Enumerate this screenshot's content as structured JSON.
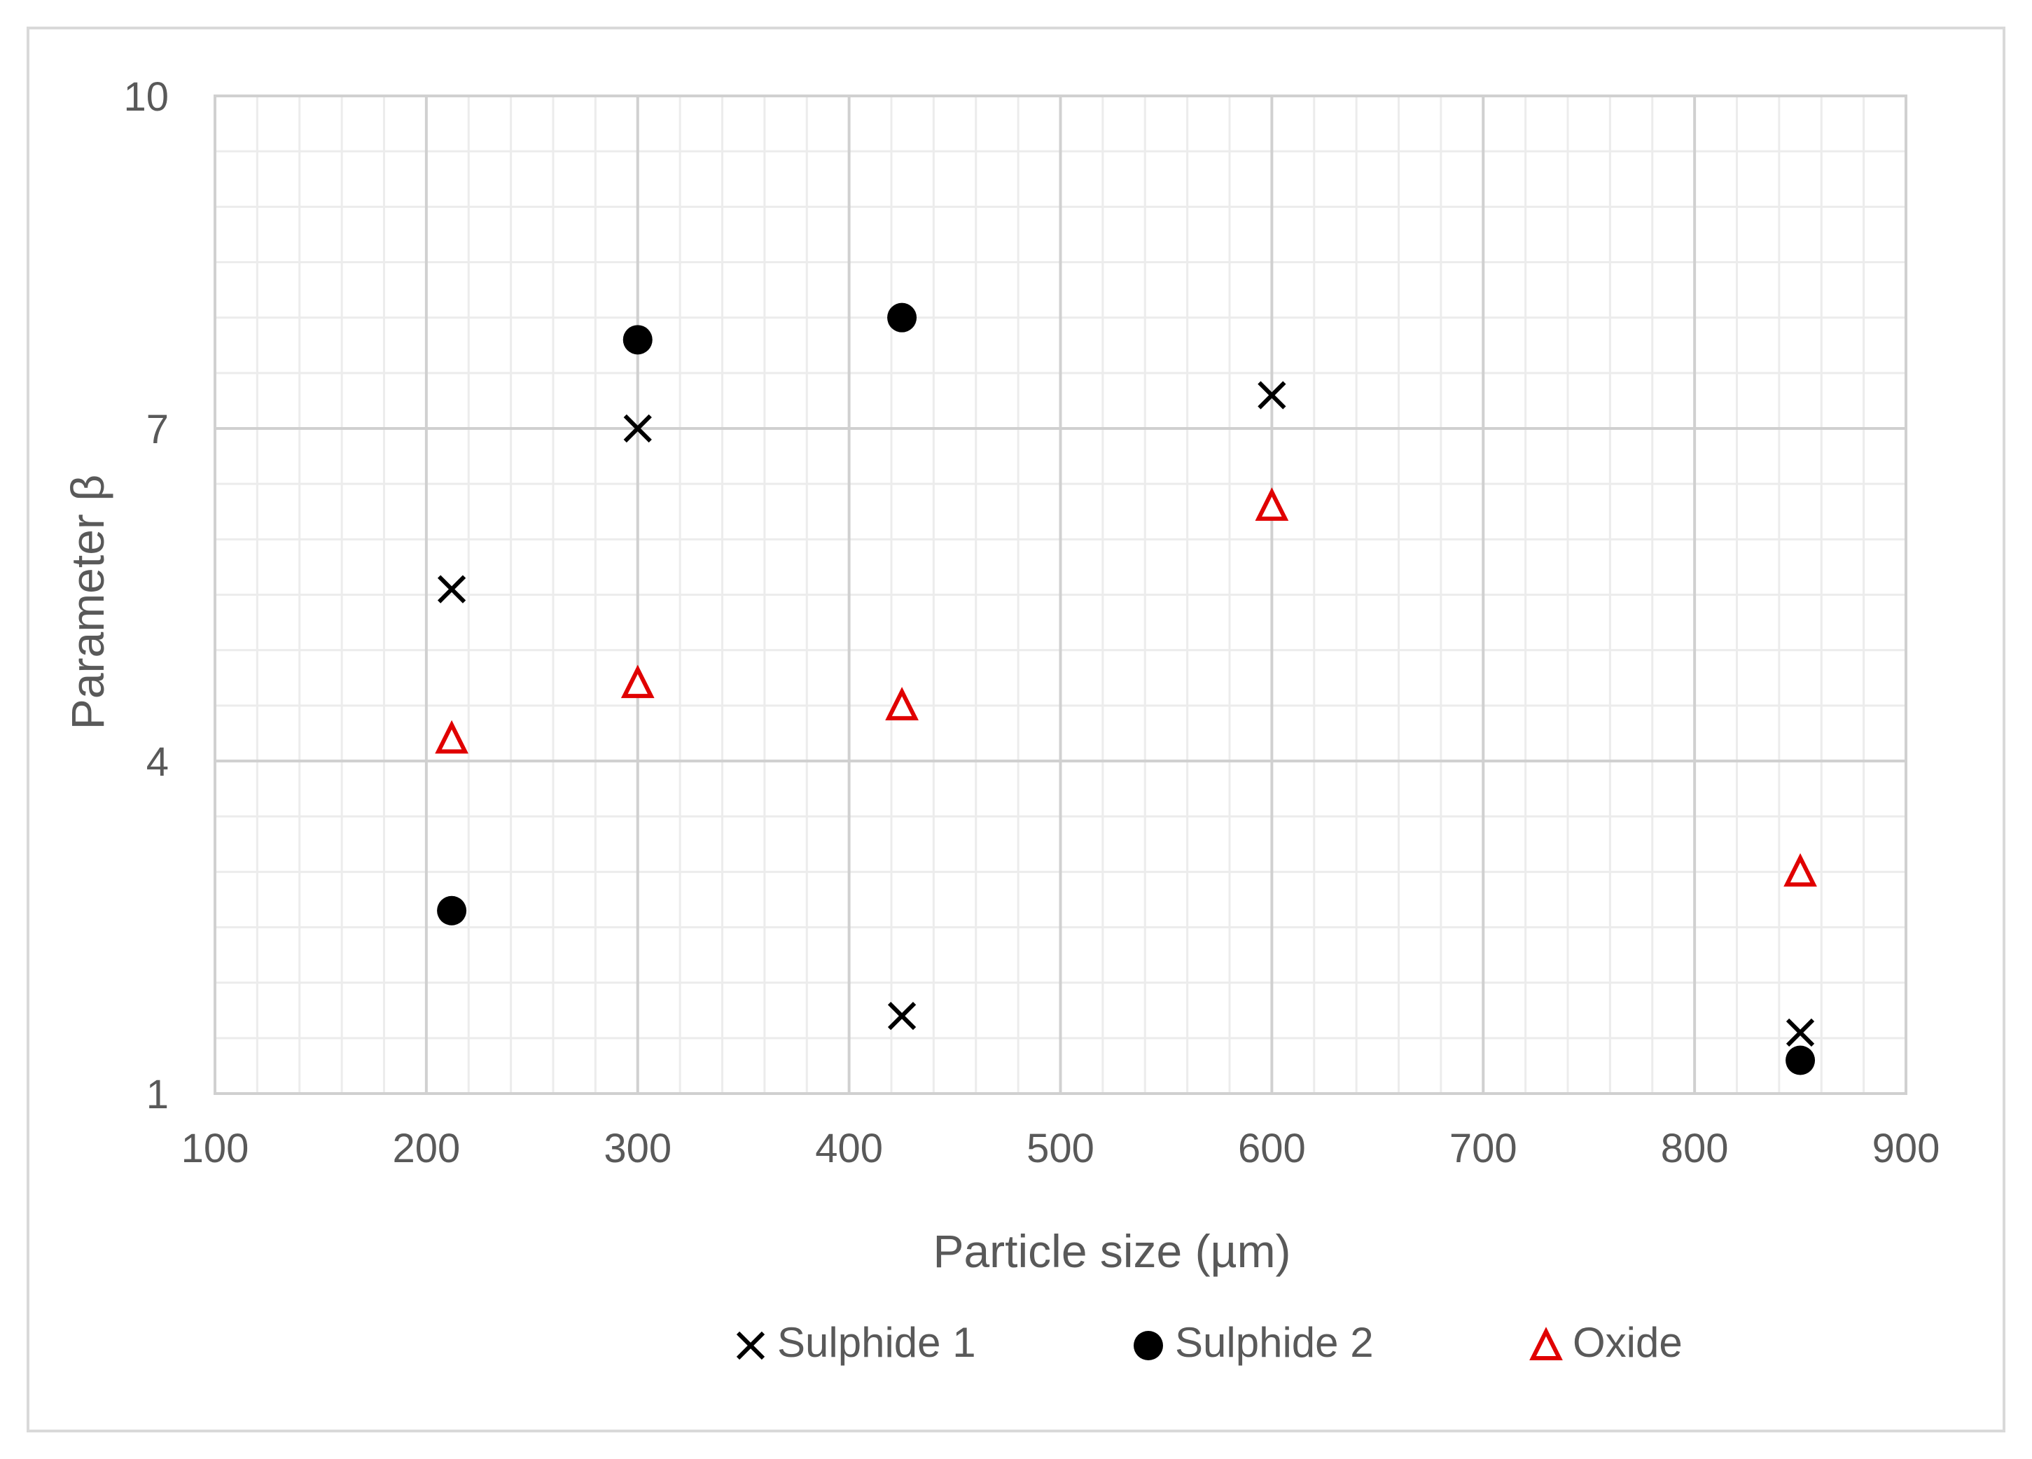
{
  "chart_data": {
    "type": "scatter",
    "xlabel": "Particle size (µm)",
    "ylabel": "Parameter β",
    "xlim": [
      100,
      900
    ],
    "ylim": [
      1,
      10
    ],
    "x_ticks": [
      "100",
      "200",
      "300",
      "400",
      "500",
      "600",
      "700",
      "800",
      "900"
    ],
    "y_ticks": [
      "1",
      "4",
      "7",
      "10"
    ],
    "x_tick_values": [
      100,
      200,
      300,
      400,
      500,
      600,
      700,
      800,
      900
    ],
    "y_tick_values": [
      1,
      4,
      7,
      10
    ],
    "grid": "major and minor",
    "legend_position": "bottom",
    "series": [
      {
        "name": "Sulphide 1",
        "marker": "x",
        "color": "#000000",
        "points": [
          {
            "x": 212,
            "y": 5.55
          },
          {
            "x": 300,
            "y": 7.0
          },
          {
            "x": 425,
            "y": 1.7
          },
          {
            "x": 600,
            "y": 7.3
          },
          {
            "x": 850,
            "y": 1.55
          }
        ]
      },
      {
        "name": "Sulphide 2",
        "marker": "circle",
        "color": "#000000",
        "points": [
          {
            "x": 212,
            "y": 2.65
          },
          {
            "x": 300,
            "y": 7.8
          },
          {
            "x": 425,
            "y": 8.0
          },
          {
            "x": 850,
            "y": 1.3
          }
        ]
      },
      {
        "name": "Oxide",
        "marker": "triangle",
        "color": "#e00000",
        "points": [
          {
            "x": 212,
            "y": 4.2
          },
          {
            "x": 300,
            "y": 4.7
          },
          {
            "x": 425,
            "y": 4.5
          },
          {
            "x": 600,
            "y": 6.3
          },
          {
            "x": 850,
            "y": 3.0
          }
        ]
      }
    ]
  }
}
